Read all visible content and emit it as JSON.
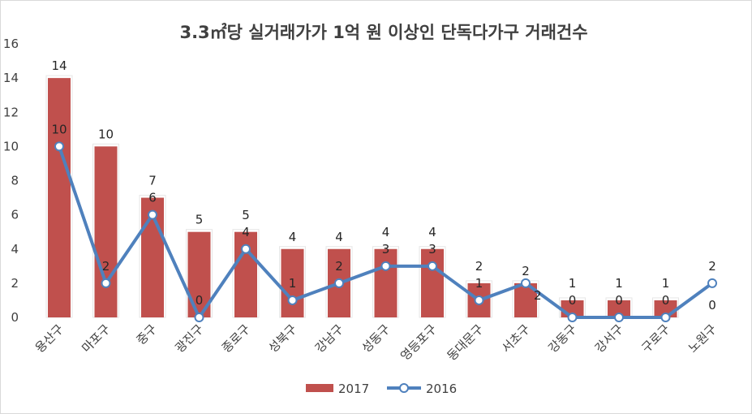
{
  "chart_data": {
    "type": "bar+line",
    "title": "3.3㎡당 실거래가가 1억 원 이상인 단독다가구 거래건수",
    "categories": [
      "용산구",
      "마포구",
      "중구",
      "광진구",
      "종로구",
      "성북구",
      "강남구",
      "성동구",
      "영등포구",
      "동대문구",
      "서초구",
      "강동구",
      "강서구",
      "구로구",
      "노원구"
    ],
    "series": [
      {
        "name": "2017",
        "kind": "bar",
        "color": "#C0504D",
        "values": [
          14,
          10,
          7,
          5,
          5,
          4,
          4,
          4,
          4,
          2,
          2,
          1,
          1,
          1,
          0
        ]
      },
      {
        "name": "2016",
        "kind": "line",
        "color": "#4F81BD",
        "values": [
          10,
          2,
          6,
          0,
          4,
          1,
          2,
          3,
          3,
          1,
          2,
          0,
          0,
          0,
          2
        ]
      }
    ],
    "ylim": [
      0,
      16
    ],
    "yticks": [
      0,
      2,
      4,
      6,
      8,
      10,
      12,
      14,
      16
    ],
    "grid": false,
    "legend": "bottom"
  }
}
